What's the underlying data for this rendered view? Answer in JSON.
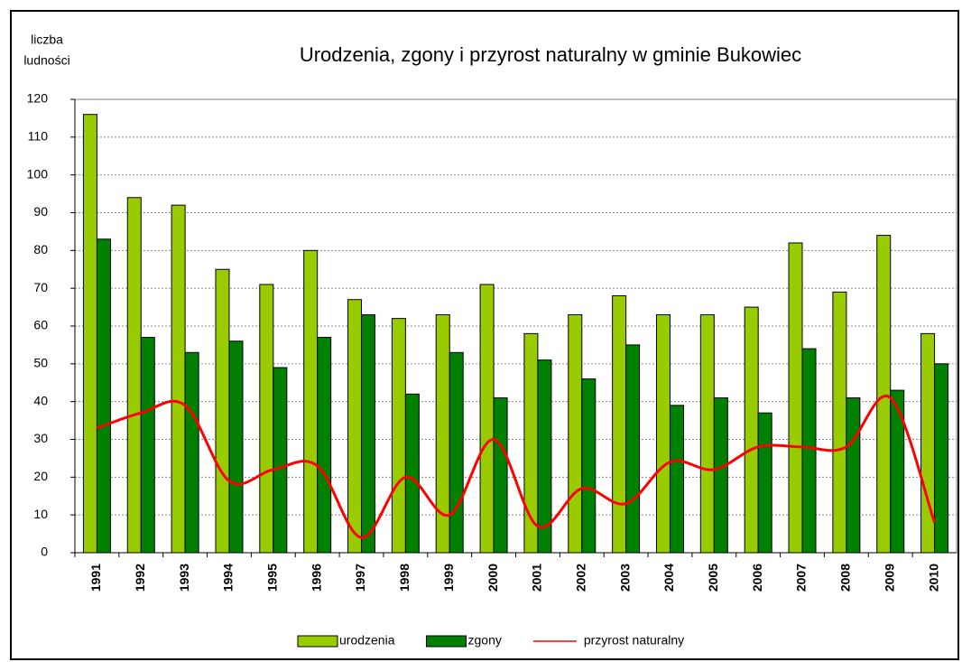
{
  "chart_data": {
    "type": "bar",
    "title": "Urodzenia, zgony i przyrost naturalny w gminie Bukowiec",
    "ylabel": [
      "liczba",
      "ludności"
    ],
    "categories": [
      "1991",
      "1992",
      "1993",
      "1994",
      "1995",
      "1996",
      "1997",
      "1998",
      "1999",
      "2000",
      "2001",
      "2002",
      "2003",
      "2004",
      "2005",
      "2006",
      "2007",
      "2008",
      "2009",
      "2010"
    ],
    "series": [
      {
        "name": "urodzenia",
        "color": "#99cc00",
        "values": [
          116,
          94,
          92,
          75,
          71,
          80,
          67,
          62,
          63,
          71,
          58,
          63,
          68,
          63,
          63,
          65,
          82,
          69,
          84,
          58
        ]
      },
      {
        "name": "zgony",
        "color": "#008000",
        "values": [
          83,
          57,
          53,
          56,
          49,
          57,
          63,
          42,
          53,
          41,
          51,
          46,
          55,
          39,
          41,
          37,
          54,
          41,
          43,
          50
        ]
      },
      {
        "name": "przyrost naturalny",
        "color": "#ff0000",
        "type": "line",
        "values": [
          33,
          37,
          39,
          19,
          22,
          23,
          4,
          20,
          10,
          30,
          7,
          17,
          13,
          24,
          22,
          28,
          28,
          28,
          41,
          8
        ]
      }
    ],
    "ylim": [
      0,
      120
    ],
    "yticks": [
      0,
      10,
      20,
      30,
      40,
      50,
      60,
      70,
      80,
      90,
      100,
      110,
      120
    ],
    "grid": true,
    "legend": "bottom"
  }
}
